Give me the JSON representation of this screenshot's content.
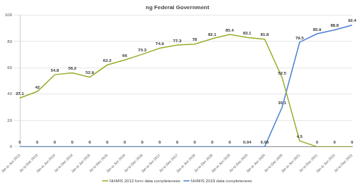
{
  "chart_data": {
    "type": "line",
    "title": "ng Federal Government",
    "categories": [
      "Jan to Jun 2013",
      "Jul to Dec 2013",
      "Jan to Jun 2014",
      "Jul to Dec 2014",
      "Jan to Jun 2015",
      "Jul to Dec 2015",
      "Jan to Jun 2016",
      "Jul to Dec 2016",
      "Jan to Jun 2017",
      "Jul to Dec 2017",
      "Jan to Jun 2018",
      "Jul to Dec 2018",
      "Jan to Jun 2019",
      "Jul to Dec 2019",
      "Jan to Jun 2020",
      "Jul to Dec 2020",
      "Jan to Jun 2021",
      "Jul to Dec 2021",
      "Jan to Jun 2022",
      "Jul to Dec 2022"
    ],
    "series": [
      {
        "name": "NHMIS 2013 form data completeness",
        "color": "#9aab2b",
        "values": [
          37.1,
          42,
          54.8,
          56.2,
          52.9,
          62.2,
          66,
          70.3,
          74.9,
          77.3,
          78,
          82.1,
          85.4,
          83.1,
          81.8,
          52.5,
          4.5,
          0,
          0,
          0
        ]
      },
      {
        "name": "NHMIS 2019 data completeness",
        "color": "#4a7fd4",
        "values": [
          0,
          0,
          0,
          0,
          0,
          0,
          0,
          0,
          0,
          0,
          0,
          0,
          0,
          0.04,
          0.06,
          30.1,
          79.5,
          85.9,
          88.8,
          92.4
        ]
      }
    ],
    "ylim": [
      0,
      100
    ],
    "yticks": [
      0,
      20,
      40,
      60,
      80,
      100
    ],
    "grid": true,
    "legend": "bottom",
    "data_labels": true
  }
}
